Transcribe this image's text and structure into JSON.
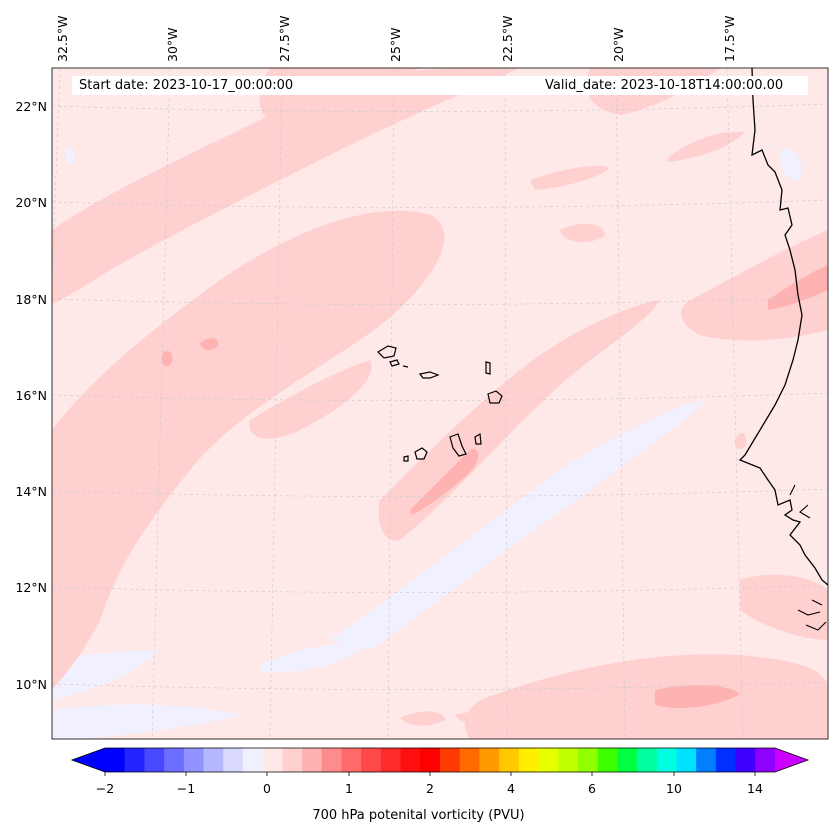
{
  "header": {
    "start_date": "Start date: 2023-10-17_00:00:00",
    "valid_date": "Valid_date: 2023-10-18T14:00:00.00"
  },
  "colorbar": {
    "title": "700 hPa potenital vorticity (PVU)",
    "tick_labels": [
      "−2",
      "−1",
      "0",
      "1",
      "2",
      "4",
      "6",
      "10",
      "14"
    ],
    "levels": [
      -2,
      -1.75,
      -1.5,
      -1.25,
      -1,
      -0.75,
      -0.5,
      -0.25,
      0,
      0.25,
      0.5,
      0.75,
      1,
      1.25,
      1.5,
      1.75,
      2,
      2.5,
      3,
      3.5,
      4,
      4.5,
      5,
      5.5,
      6,
      7,
      8,
      9,
      10,
      11,
      12,
      13,
      14,
      15
    ],
    "colors": [
      "#0000ff",
      "#2424ff",
      "#4848ff",
      "#6d6dff",
      "#9191ff",
      "#b6b6ff",
      "#dadaff",
      "#f0f0ff",
      "#ffe8e8",
      "#ffd0d0",
      "#ffb2b2",
      "#ff8c8c",
      "#ff6a6a",
      "#ff4848",
      "#ff2a2a",
      "#ff0f0f",
      "#ff0000",
      "#ff3a00",
      "#ff6a00",
      "#ff9a00",
      "#ffc800",
      "#ffee00",
      "#e8ff00",
      "#c0ff00",
      "#90ff00",
      "#3cff00",
      "#00ff40",
      "#00ffa0",
      "#00ffe0",
      "#00e0ff",
      "#0080ff",
      "#0030ff",
      "#4000ff",
      "#9000ff"
    ],
    "extend_min_color": "#0000ff",
    "extend_max_color": "#cc00ff"
  },
  "map": {
    "lon_labels": [
      "32.5°W",
      "30°W",
      "27.5°W",
      "25°W",
      "22.5°W",
      "20°W",
      "17.5°W"
    ],
    "lat_labels": [
      "22°N",
      "20°N",
      "18°N",
      "16°N",
      "14°N",
      "12°N",
      "10°N"
    ],
    "background_color": "#ffe8e8",
    "band_color": "#ffd0d0",
    "strong_color": "#ffb2b2",
    "negative_color": "#f0f0ff"
  }
}
